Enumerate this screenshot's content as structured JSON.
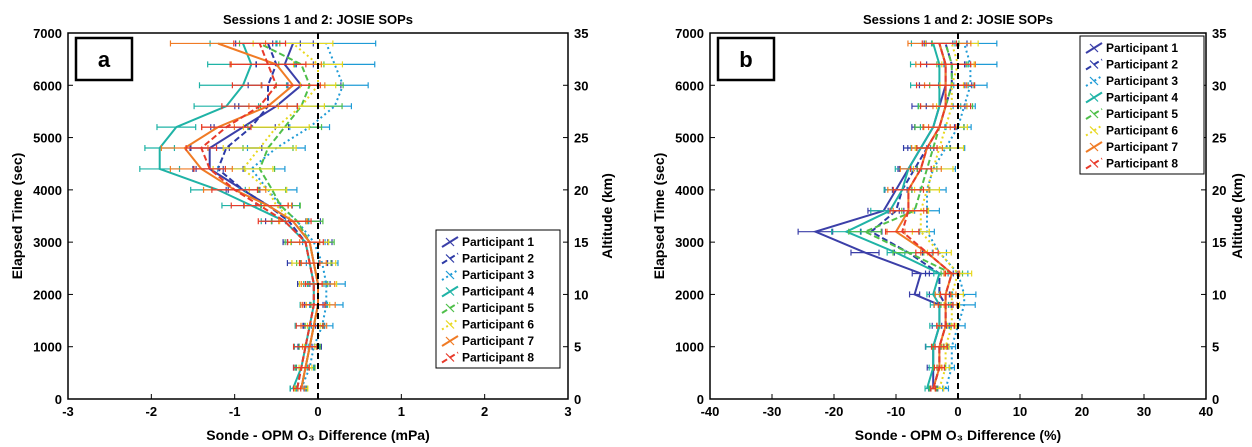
{
  "chart_data": [
    {
      "type": "line",
      "panel_label": "a",
      "title": "Sessions 1 and 2: JOSIE SOPs",
      "xlabel": "Sonde - OPM O₃ Difference (mPa)",
      "ylabel": "Elapsed Time (sec)",
      "y2label": "Altitude (km)",
      "xlim": [
        -3,
        3
      ],
      "ylim": [
        0,
        7000
      ],
      "y2lim": [
        0,
        35
      ],
      "xticks": [
        -3,
        -2,
        -1,
        0,
        1,
        2,
        3
      ],
      "yticks": [
        0,
        1000,
        2000,
        3000,
        4000,
        5000,
        6000,
        7000
      ],
      "y2ticks": [
        0,
        5,
        10,
        15,
        20,
        25,
        30,
        35
      ],
      "grid": false,
      "reference_line_x": 0,
      "legend_position": "lower-right",
      "y": [
        200,
        600,
        1000,
        1400,
        1800,
        2200,
        2600,
        3000,
        3400,
        3700,
        4000,
        4400,
        4800,
        5200,
        5600,
        6000,
        6400,
        6800
      ],
      "series": [
        {
          "name": "Participant 1",
          "color": "#3b3fa8",
          "dash": "solid",
          "values": [
            -0.2,
            -0.15,
            -0.1,
            -0.05,
            0.0,
            0.0,
            -0.05,
            -0.1,
            -0.3,
            -0.6,
            -0.9,
            -1.3,
            -1.3,
            -0.9,
            -0.5,
            -0.2,
            -0.4,
            -0.3
          ]
        },
        {
          "name": "Participant 2",
          "color": "#2d3aa6",
          "dash": "dash",
          "values": [
            -0.25,
            -0.2,
            -0.15,
            -0.1,
            -0.05,
            -0.05,
            -0.1,
            -0.15,
            -0.35,
            -0.6,
            -0.9,
            -1.2,
            -1.1,
            -0.8,
            -0.6,
            -0.6,
            -0.5,
            -0.6
          ]
        },
        {
          "name": "Participant 3",
          "color": "#1f9bd6",
          "dash": "dot",
          "values": [
            -0.2,
            -0.1,
            -0.05,
            0.05,
            0.1,
            0.1,
            0.05,
            -0.05,
            -0.25,
            -0.45,
            -0.6,
            -0.8,
            -0.5,
            -0.1,
            0.2,
            0.3,
            0.2,
            0.1
          ]
        },
        {
          "name": "Participant 4",
          "color": "#1fb3a6",
          "dash": "solid",
          "values": [
            -0.3,
            -0.2,
            -0.15,
            -0.1,
            -0.05,
            -0.05,
            -0.1,
            -0.15,
            -0.4,
            -0.8,
            -1.2,
            -1.9,
            -1.9,
            -1.7,
            -1.1,
            -0.9,
            -0.8,
            -0.9
          ]
        },
        {
          "name": "Participant 5",
          "color": "#4fbf4a",
          "dash": "dash",
          "values": [
            -0.2,
            -0.15,
            -0.1,
            -0.05,
            0.0,
            0.0,
            -0.05,
            -0.1,
            -0.25,
            -0.45,
            -0.55,
            -0.7,
            -0.6,
            -0.4,
            -0.2,
            -0.1,
            -0.2,
            -0.7
          ]
        },
        {
          "name": "Participant 6",
          "color": "#e8d81e",
          "dash": "dot",
          "values": [
            -0.2,
            -0.15,
            -0.1,
            -0.05,
            0.0,
            0.0,
            -0.05,
            -0.1,
            -0.3,
            -0.5,
            -0.6,
            -0.9,
            -0.7,
            -0.5,
            -0.2,
            0.0,
            0.0,
            -0.3
          ]
        },
        {
          "name": "Participant 7",
          "color": "#f07b25",
          "dash": "solid",
          "values": [
            -0.2,
            -0.15,
            -0.1,
            -0.05,
            0.0,
            0.0,
            -0.05,
            -0.1,
            -0.3,
            -0.6,
            -1.0,
            -1.4,
            -1.6,
            -1.2,
            -0.6,
            -0.3,
            -0.5,
            -1.2
          ]
        },
        {
          "name": "Participant 8",
          "color": "#e83a2a",
          "dash": "dash",
          "values": [
            -0.25,
            -0.2,
            -0.15,
            -0.1,
            -0.05,
            -0.05,
            -0.1,
            -0.15,
            -0.4,
            -0.7,
            -1.0,
            -1.3,
            -1.4,
            -1.1,
            -0.7,
            -0.5,
            -0.6,
            -0.7
          ]
        }
      ]
    },
    {
      "type": "line",
      "panel_label": "b",
      "title": "Sessions 1 and 2: JOSIE SOPs",
      "xlabel": "Sonde - OPM O₃ Difference (%)",
      "ylabel": "Elapsed Time (sec)",
      "y2label": "Altitude (km)",
      "xlim": [
        -40,
        40
      ],
      "ylim": [
        0,
        7000
      ],
      "y2lim": [
        0,
        35
      ],
      "xticks": [
        -40,
        -30,
        -20,
        -10,
        0,
        10,
        20,
        30,
        40
      ],
      "yticks": [
        0,
        1000,
        2000,
        3000,
        4000,
        5000,
        6000,
        7000
      ],
      "y2ticks": [
        0,
        5,
        10,
        15,
        20,
        25,
        30,
        35
      ],
      "grid": false,
      "reference_line_x": 0,
      "legend_position": "top-right",
      "y": [
        200,
        600,
        1000,
        1400,
        1800,
        2000,
        2400,
        2800,
        3200,
        3600,
        4000,
        4400,
        4800,
        5200,
        5600,
        6000,
        6400,
        6800
      ],
      "series": [
        {
          "name": "Participant 1",
          "color": "#3b3fa8",
          "dash": "solid",
          "values": [
            -4,
            -4,
            -4,
            -3,
            -3,
            -7,
            -6,
            -15,
            -23,
            -12,
            -10,
            -8,
            -6,
            -4,
            -3,
            -2,
            -2,
            -3
          ]
        },
        {
          "name": "Participant 2",
          "color": "#2d3aa6",
          "dash": "dash",
          "values": [
            -4,
            -3,
            -3,
            -2,
            -2,
            -3,
            -3,
            -8,
            -14,
            -10,
            -9,
            -7,
            -5,
            -3,
            -2,
            -1,
            -1,
            -2
          ]
        },
        {
          "name": "Participant 3",
          "color": "#1f9bd6",
          "dash": "dot",
          "values": [
            -2,
            -1,
            -1,
            0,
            1,
            1,
            0,
            -3,
            -5,
            -5,
            -5,
            -4,
            -2,
            0,
            1,
            2,
            2,
            1
          ]
        },
        {
          "name": "Participant 4",
          "color": "#1fb3a6",
          "dash": "solid",
          "values": [
            -5,
            -4,
            -4,
            -3,
            -3,
            -4,
            -3,
            -10,
            -18,
            -11,
            -9,
            -8,
            -6,
            -4,
            -3,
            -3,
            -3,
            -4
          ]
        },
        {
          "name": "Participant 5",
          "color": "#4fbf4a",
          "dash": "dash",
          "values": [
            -4,
            -3,
            -3,
            -2,
            -2,
            -2,
            -1,
            -8,
            -15,
            -7,
            -6,
            -5,
            -4,
            -3,
            -2,
            -1,
            -1,
            -2
          ]
        },
        {
          "name": "Participant 6",
          "color": "#e8d81e",
          "dash": "dot",
          "values": [
            -3,
            -2,
            -2,
            -1,
            -1,
            -1,
            0,
            -3,
            -6,
            -6,
            -5,
            -4,
            -3,
            -2,
            -1,
            -1,
            0,
            -1
          ]
        },
        {
          "name": "Participant 7",
          "color": "#f07b25",
          "dash": "solid",
          "values": [
            -4,
            -3,
            -3,
            -2,
            -2,
            -2,
            -1,
            -5,
            -10,
            -8,
            -8,
            -6,
            -5,
            -3,
            -2,
            -2,
            -2,
            -3
          ]
        },
        {
          "name": "Participant 8",
          "color": "#e83a2a",
          "dash": "dash",
          "values": [
            -4,
            -3,
            -3,
            -2,
            -2,
            -2,
            -1,
            -5,
            -9,
            -8,
            -8,
            -6,
            -5,
            -3,
            -2,
            -2,
            -2,
            -3
          ]
        }
      ]
    }
  ]
}
